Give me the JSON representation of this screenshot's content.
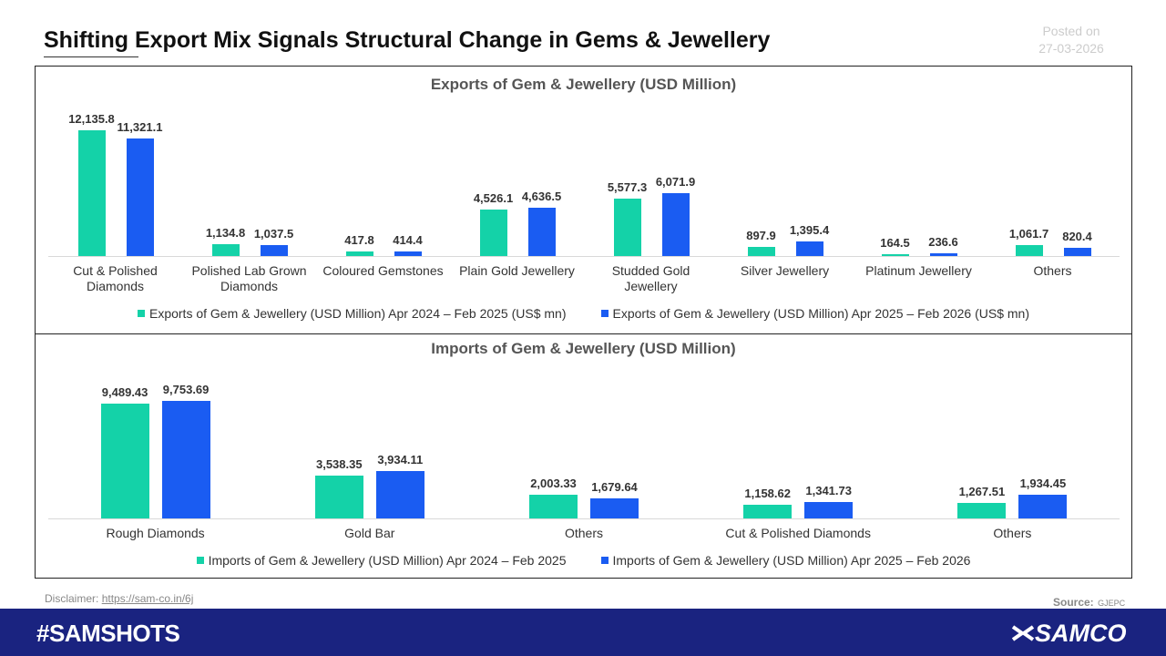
{
  "header": {
    "title": "Shifting Export Mix Signals Structural Change in Gems & Jewellery",
    "posted_label": "Posted on",
    "posted_date": "27-03-2026"
  },
  "chart_data": [
    {
      "type": "bar",
      "title": "Exports of Gem & Jewellery (USD Million)",
      "categories": [
        "Cut & Polished Diamonds",
        "Polished Lab Grown Diamonds",
        "Coloured Gemstones",
        "Plain Gold Jewellery",
        "Studded Gold Jewellery",
        "Silver Jewellery",
        "Platinum Jewellery",
        "Others"
      ],
      "series": [
        {
          "name": "Exports of Gem & Jewellery (USD Million) Apr 2024 – Feb 2025 (US$ mn)",
          "color": "#14d2a8",
          "values": [
            12135.8,
            1134.8,
            417.8,
            4526.1,
            5577.3,
            897.9,
            164.5,
            1061.7
          ],
          "value_labels": [
            "12,135.8",
            "1,134.8",
            "417.8",
            "4,526.1",
            "5,577.3",
            "897.9",
            "164.5",
            "1,061.7"
          ]
        },
        {
          "name": "Exports of Gem & Jewellery (USD Million) Apr 2025 – Feb 2026 (US$ mn)",
          "color": "#1a5cf2",
          "values": [
            11321.1,
            1037.5,
            414.4,
            4636.5,
            6071.9,
            1395.4,
            236.6,
            820.4
          ],
          "value_labels": [
            "11,321.1",
            "1,037.5",
            "414.4",
            "4,636.5",
            "6,071.9",
            "1,395.4",
            "236.6",
            "820.4"
          ]
        }
      ]
    },
    {
      "type": "bar",
      "title": "Imports of Gem & Jewellery (USD Million)",
      "categories": [
        "Rough Diamonds",
        "Gold Bar",
        "Others",
        "Cut & Polished Diamonds",
        "Others"
      ],
      "series": [
        {
          "name": "Imports of Gem & Jewellery (USD Million) Apr 2024 – Feb 2025",
          "color": "#14d2a8",
          "values": [
            9489.43,
            3538.35,
            2003.33,
            1158.62,
            1267.51
          ],
          "value_labels": [
            "9,489.43",
            "3,538.35",
            "2,003.33",
            "1,158.62",
            "1,267.51"
          ]
        },
        {
          "name": "Imports of Gem & Jewellery (USD Million) Apr 2025 – Feb 2026",
          "color": "#1a5cf2",
          "values": [
            9753.69,
            3934.11,
            1679.64,
            1341.73,
            1934.45
          ],
          "value_labels": [
            "9,753.69",
            "3,934.11",
            "1,679.64",
            "1,341.73",
            "1,934.45"
          ]
        }
      ]
    }
  ],
  "footer": {
    "disclaimer_label": "Disclaimer:",
    "disclaimer_url": "https://sam-co.in/6j",
    "source_label": "Source:",
    "source_value": "GJEPC",
    "hashtag": "#SAMSHOTS",
    "brand": "SAMCO"
  }
}
